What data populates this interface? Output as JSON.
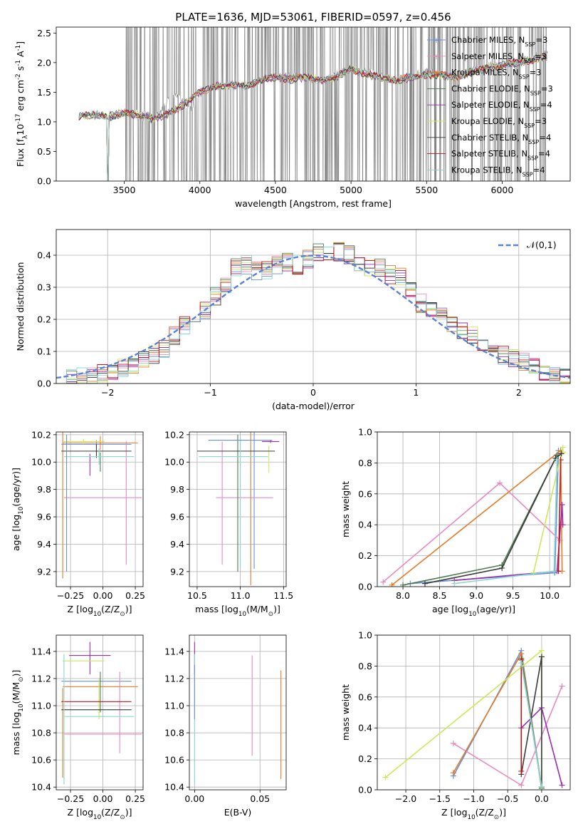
{
  "figure_title": "PLATE=1636, MJD=53061, FIBERID=0597, z=0.456",
  "colors": {
    "Chabrier MILES": "#6b8fd6",
    "Salpeter MILES": "#e88ac0",
    "Kroupa MILES": "#e07b2a",
    "Chabrier ELODIE": "#4c7a50",
    "Salpeter ELODIE": "#9b2db0",
    "Kroupa ELODIE": "#cce85a",
    "Chabrier STELIB": "#3a3a3a",
    "Salpeter STELIB": "#c0141a",
    "Kroupa STELIB": "#8ad8d0",
    "data": "#808080",
    "gauss": "#5a82d4"
  },
  "chart_data": [
    {
      "id": "spectrum",
      "type": "line",
      "xlabel": "wavelength [Angstrom, rest frame]",
      "ylabel": "Flux [f$_\\lambda$10$^{-17}$ erg cm$^{-2}$ s$^{-1}$ A$^{-1}$]",
      "xlim": [
        3050,
        6450
      ],
      "ylim": [
        0,
        2.6
      ],
      "xticks": [
        3500,
        4000,
        4500,
        5000,
        5500,
        6000
      ],
      "yticks": [
        0.0,
        0.5,
        1.0,
        1.5,
        2.0,
        2.5
      ],
      "legend_position": "top-right",
      "legend": [
        "Chabrier MILES, N$_{SSP}$=3",
        "Salpeter MILES, N$_{SSP}$=3",
        "Kroupa MILES, N$_{SSP}$=3",
        "Chabrier ELODIE, N$_{SSP}$=3",
        "Salpeter ELODIE, N$_{SSP}$=4",
        "Kroupa ELODIE, N$_{SSP}$=3",
        "Chabrier STELIB, N$_{SSP}$=4",
        "Salpeter STELIB, N$_{SSP}$=4",
        "Kroupa STELIB, N$_{SSP}$=4"
      ],
      "data_series": {
        "name": "data",
        "x": [
          3200,
          3250,
          3300,
          3350,
          3400,
          3450,
          3500,
          3550,
          3600,
          3650,
          3700,
          3750,
          3800,
          3850,
          3900,
          3950,
          4000,
          4100,
          4200,
          4300,
          4400,
          4500,
          4600,
          4700,
          4800,
          4900,
          5000,
          5100,
          5200,
          5300,
          5400,
          5500,
          5600,
          5700,
          5800,
          5900,
          6000,
          6100,
          6200,
          6300
        ],
        "y": [
          1.1,
          1.12,
          1.08,
          1.13,
          1.05,
          1.1,
          1.15,
          1.1,
          1.2,
          1.12,
          1.1,
          1.2,
          1.4,
          1.45,
          1.3,
          1.2,
          1.5,
          1.6,
          1.65,
          1.6,
          1.7,
          1.75,
          1.8,
          1.75,
          1.7,
          1.8,
          1.9,
          1.85,
          1.8,
          1.7,
          1.8,
          1.85,
          1.8,
          1.75,
          1.9,
          1.95,
          2.0,
          2.0,
          2.1,
          2.2
        ],
        "noise_region": [
          3500,
          6300
        ]
      },
      "model_series": {
        "x": [
          3200,
          3300,
          3400,
          3500,
          3600,
          3700,
          3800,
          3900,
          4000,
          4100,
          4200,
          4300,
          4400,
          4500,
          4600,
          4700,
          4800,
          4900,
          5000,
          5100,
          5200,
          5300,
          5400,
          5500,
          5600,
          5700,
          5800,
          5900,
          6000,
          6100,
          6200,
          6300
        ],
        "y": [
          1.1,
          1.12,
          1.1,
          1.15,
          1.1,
          1.05,
          1.15,
          1.3,
          1.5,
          1.6,
          1.62,
          1.6,
          1.7,
          1.75,
          1.72,
          1.75,
          1.7,
          1.75,
          1.9,
          1.8,
          1.75,
          1.7,
          1.75,
          1.8,
          1.78,
          1.75,
          1.85,
          1.9,
          1.95,
          2.0,
          2.05,
          2.1
        ]
      }
    },
    {
      "id": "residuals",
      "type": "histogram",
      "xlabel": "(data-model)/error",
      "ylabel": "Normed distribution",
      "xlim": [
        -2.5,
        2.5
      ],
      "ylim": [
        0,
        0.48
      ],
      "xticks": [
        -2,
        -1,
        0,
        1,
        2
      ],
      "yticks": [
        0.0,
        0.1,
        0.2,
        0.3,
        0.4
      ],
      "legend": [
        "$\\mathcal{N}(0,1)$"
      ],
      "legend_position": "top-right",
      "bin_edges": [
        -2.5,
        -2.4,
        -2.3,
        -2.2,
        -2.1,
        -2.0,
        -1.9,
        -1.8,
        -1.7,
        -1.6,
        -1.5,
        -1.4,
        -1.3,
        -1.2,
        -1.1,
        -1.0,
        -0.9,
        -0.8,
        -0.7,
        -0.6,
        -0.5,
        -0.4,
        -0.3,
        -0.2,
        -0.1,
        0.0,
        0.1,
        0.2,
        0.3,
        0.4,
        0.5,
        0.6,
        0.7,
        0.8,
        0.9,
        1.0,
        1.1,
        1.2,
        1.3,
        1.4,
        1.5,
        1.6,
        1.7,
        1.8,
        1.9,
        2.0,
        2.1,
        2.2,
        2.3,
        2.4,
        2.5
      ],
      "values": [
        0.01,
        0.015,
        0.02,
        0.025,
        0.03,
        0.04,
        0.05,
        0.06,
        0.07,
        0.09,
        0.11,
        0.15,
        0.18,
        0.2,
        0.23,
        0.27,
        0.31,
        0.36,
        0.37,
        0.35,
        0.35,
        0.37,
        0.38,
        0.37,
        0.39,
        0.41,
        0.4,
        0.41,
        0.4,
        0.38,
        0.36,
        0.36,
        0.34,
        0.33,
        0.29,
        0.25,
        0.23,
        0.21,
        0.19,
        0.16,
        0.15,
        0.12,
        0.1,
        0.09,
        0.08,
        0.07,
        0.06,
        0.04,
        0.03,
        0.02
      ]
    },
    {
      "id": "z_age",
      "type": "errorbar",
      "xlabel": "Z [log$_{10}$(Z/Z$_\\odot$)]",
      "ylabel": "age  [log$_{10}$(age/yr)]",
      "xlim": [
        -0.36,
        0.31
      ],
      "ylim": [
        9.09,
        10.22
      ],
      "xticks": [
        -0.25,
        0.0,
        0.25
      ],
      "xticklabels": [
        "−0.25",
        "0.00",
        "0.25"
      ],
      "yticks": [
        9.2,
        9.4,
        9.6,
        9.8,
        10.0,
        10.2
      ],
      "points": [
        {
          "model": "Chabrier MILES",
          "x": -0.05,
          "xerr": 0.27,
          "y": 10.13,
          "yerr": 0.03
        },
        {
          "model": "Salpeter MILES",
          "x": 0.0,
          "xerr": 0.3,
          "y": 9.74,
          "yerr": 0.0
        },
        {
          "model": "Salpeter MILES",
          "x": 0.18,
          "xerr": 0.0,
          "y": 9.7,
          "yerr": 0.45
        },
        {
          "model": "Kroupa MILES",
          "x": -0.02,
          "xerr": 0.29,
          "y": 10.14,
          "yerr": 0.05
        },
        {
          "model": "Kroupa MILES",
          "x": -0.31,
          "xerr": 0.0,
          "y": 9.7,
          "yerr": 0.55
        },
        {
          "model": "Chabrier ELODIE",
          "x": -0.02,
          "xerr": 0.0,
          "y": 10.0,
          "yerr": 0.07
        },
        {
          "model": "Salpeter ELODIE",
          "x": -0.1,
          "xerr": 0.0,
          "y": 9.98,
          "yerr": 0.08
        },
        {
          "model": "Kroupa ELODIE",
          "x": -0.15,
          "xerr": 0.16,
          "y": 10.15,
          "yerr": 0.02
        },
        {
          "model": "Chabrier STELIB",
          "x": -0.05,
          "xerr": 0.27,
          "y": 10.08,
          "yerr": 0.05
        },
        {
          "model": "Kroupa STELIB",
          "x": -0.03,
          "xerr": 0.27,
          "y": 10.04,
          "yerr": 0.06
        },
        {
          "model": "Chabrier MILES",
          "x": -0.28,
          "xerr": 0.0,
          "y": 9.7,
          "yerr": 0.5
        }
      ]
    },
    {
      "id": "mass_age",
      "type": "errorbar",
      "xlabel": "mass [log$_{10}$(M/M$_\\odot$)]",
      "ylabel": "",
      "xlim": [
        10.41,
        11.53
      ],
      "ylim": [
        9.09,
        10.22
      ],
      "xticks": [
        10.5,
        11.0,
        11.5
      ],
      "yticks": [
        9.2,
        9.4,
        9.6,
        9.8,
        10.0,
        10.2
      ],
      "points": [
        {
          "model": "Chabrier MILES",
          "x": 11.16,
          "xerr": 0.0,
          "y": 9.72,
          "yerr": 0.5
        },
        {
          "model": "Salpeter MILES",
          "x": 10.79,
          "xerr": 0.0,
          "y": 9.7,
          "yerr": 0.45
        },
        {
          "model": "Salpeter MILES",
          "x": 11.05,
          "xerr": 0.33,
          "y": 9.74,
          "yerr": 0.0
        },
        {
          "model": "Kroupa MILES",
          "x": 11.12,
          "xerr": 0.0,
          "y": 9.7,
          "yerr": 0.6
        },
        {
          "model": "Chabrier ELODIE",
          "x": 10.97,
          "xerr": 0.0,
          "y": 9.7,
          "yerr": 0.5
        },
        {
          "model": "Salpeter ELODIE",
          "x": 11.35,
          "xerr": 0.1,
          "y": 10.15,
          "yerr": 0.01
        },
        {
          "model": "Kroupa ELODIE",
          "x": 11.33,
          "xerr": 0.0,
          "y": 10.02,
          "yerr": 0.1
        },
        {
          "model": "Chabrier STELIB",
          "x": 10.95,
          "xerr": 0.45,
          "y": 10.08,
          "yerr": 0.0
        },
        {
          "model": "Kroupa STELIB",
          "x": 10.92,
          "xerr": 0.4,
          "y": 10.04,
          "yerr": 0.0
        },
        {
          "model": "Kroupa STELIB",
          "x": 11.0,
          "xerr": 0.0,
          "y": 9.7,
          "yerr": 0.48
        },
        {
          "model": "Chabrier MILES",
          "x": 11.0,
          "xerr": 0.37,
          "y": 10.16,
          "yerr": 0.0
        }
      ]
    },
    {
      "id": "age_weight",
      "type": "line",
      "xlabel": "age  [log$_{10}$(age/yr)]",
      "ylabel": "mass weight",
      "xlim": [
        7.65,
        10.28
      ],
      "ylim": [
        0,
        1.0
      ],
      "xticks": [
        8.0,
        8.5,
        9.0,
        9.5,
        10.0
      ],
      "yticks": [
        0.0,
        0.2,
        0.4,
        0.6,
        0.8,
        1.0
      ],
      "series": [
        {
          "name": "Chabrier MILES",
          "x": [
            8.1,
            10.07,
            10.12
          ],
          "y": [
            0.02,
            0.09,
            0.88
          ]
        },
        {
          "name": "Salpeter MILES",
          "x": [
            7.73,
            9.32,
            10.14
          ],
          "y": [
            0.03,
            0.67,
            0.3
          ]
        },
        {
          "name": "Kroupa MILES",
          "x": [
            7.85,
            10.15,
            10.17
          ],
          "y": [
            0.01,
            0.88,
            0.1
          ]
        },
        {
          "name": "Chabrier ELODIE",
          "x": [
            8.0,
            9.35,
            10.1
          ],
          "y": [
            0.01,
            0.14,
            0.85
          ]
        },
        {
          "name": "Salpeter ELODIE",
          "x": [
            8.7,
            10.1,
            10.17,
            10.18
          ],
          "y": [
            0.04,
            0.1,
            0.53,
            0.4
          ]
        },
        {
          "name": "Kroupa ELODIE",
          "x": [
            9.78,
            10.18,
            10.18
          ],
          "y": [
            0.09,
            0.9,
            0.87
          ]
        },
        {
          "name": "Chabrier STELIB",
          "x": [
            8.3,
            9.35,
            10.08,
            10.16
          ],
          "y": [
            0.02,
            0.12,
            0.83,
            0.86
          ]
        },
        {
          "name": "Salpeter STELIB",
          "x": [
            10.12,
            10.15
          ],
          "y": [
            0.1,
            0.82
          ]
        },
        {
          "name": "Kroupa STELIB",
          "x": [
            8.7,
            10.06,
            10.1
          ],
          "y": [
            0.02,
            0.1,
            0.82
          ]
        }
      ]
    },
    {
      "id": "z_mass",
      "type": "errorbar",
      "xlabel": "Z [log$_{10}$(Z/Z$_\\odot$)]",
      "ylabel": "mass [log$_{10}$(M/M$_\\odot$)]",
      "xlim": [
        -0.36,
        0.31
      ],
      "ylim": [
        10.38,
        11.52
      ],
      "xticks": [
        -0.25,
        0.0,
        0.25
      ],
      "xticklabels": [
        "−0.25",
        "0.00",
        "0.25"
      ],
      "yticks": [
        10.4,
        10.6,
        10.8,
        11.0,
        11.2,
        11.4
      ],
      "points": [
        {
          "model": "Chabrier MILES",
          "x": -0.05,
          "xerr": 0.27,
          "y": 11.18,
          "yerr": 0.0
        },
        {
          "model": "Salpeter MILES",
          "x": 0.0,
          "xerr": 0.3,
          "y": 10.79,
          "yerr": 0.0
        },
        {
          "model": "Salpeter MILES",
          "x": 0.13,
          "xerr": 0.0,
          "y": 10.95,
          "yerr": 0.3
        },
        {
          "model": "Kroupa MILES",
          "x": -0.02,
          "xerr": 0.29,
          "y": 11.14,
          "yerr": 0.0
        },
        {
          "model": "Kroupa MILES",
          "x": -0.31,
          "xerr": 0.0,
          "y": 10.8,
          "yerr": 0.33
        },
        {
          "model": "Chabrier ELODIE",
          "x": -0.02,
          "xerr": 0.0,
          "y": 11.1,
          "yerr": 0.15
        },
        {
          "model": "Salpeter ELODIE",
          "x": -0.1,
          "xerr": 0.0,
          "y": 11.35,
          "yerr": 0.12
        },
        {
          "model": "Salpeter ELODIE",
          "x": -0.1,
          "xerr": 0.16,
          "y": 11.37,
          "yerr": 0.0
        },
        {
          "model": "Kroupa ELODIE",
          "x": -0.15,
          "xerr": 0.16,
          "y": 11.33,
          "yerr": 0.0
        },
        {
          "model": "Kroupa ELODIE",
          "x": -0.03,
          "xerr": 0.0,
          "y": 11.05,
          "yerr": 0.15
        },
        {
          "model": "Chabrier STELIB",
          "x": -0.05,
          "xerr": 0.27,
          "y": 10.97,
          "yerr": 0.0
        },
        {
          "model": "Salpeter STELIB",
          "x": -0.05,
          "xerr": 0.27,
          "y": 11.03,
          "yerr": 0.0
        },
        {
          "model": "Kroupa STELIB",
          "x": -0.03,
          "xerr": 0.27,
          "y": 10.92,
          "yerr": 0.0
        },
        {
          "model": "Kroupa STELIB",
          "x": -0.3,
          "xerr": 0.0,
          "y": 10.9,
          "yerr": 0.48
        }
      ]
    },
    {
      "id": "ebv_mass",
      "type": "errorbar",
      "xlabel": "E(B-V)",
      "ylabel": "",
      "xlim": [
        -0.004,
        0.07
      ],
      "ylim": [
        10.38,
        11.52
      ],
      "xticks": [
        0.0,
        0.05
      ],
      "xticklabels": [
        "0.00",
        "0.05"
      ],
      "yticks": [
        10.4,
        10.6,
        10.8,
        11.0,
        11.2,
        11.4
      ],
      "points": [
        {
          "model": "Salpeter MILES",
          "x": 0.044,
          "xerr": 0.0,
          "y": 11.0,
          "yerr": 0.37
        },
        {
          "model": "Kroupa MILES",
          "x": 0.066,
          "xerr": 0.0,
          "y": 10.86,
          "yerr": 0.4
        },
        {
          "model": "Salpeter ELODIE",
          "x": 0.0,
          "xerr": 0.0,
          "y": 11.4,
          "yerr": 0.07
        },
        {
          "model": "Salpeter STELIB",
          "x": 0.0,
          "xerr": 0.0,
          "y": 11.28,
          "yerr": 0.05
        },
        {
          "model": "Kroupa STELIB",
          "x": 0.0,
          "xerr": 0.0,
          "y": 10.9,
          "yerr": 0.48
        },
        {
          "model": "Chabrier MILES",
          "x": 0.0,
          "xerr": 0.0,
          "y": 11.1,
          "yerr": 0.2
        }
      ]
    },
    {
      "id": "z_weight",
      "type": "line",
      "xlabel": "Z [log$_{10}$(Z/Z$_\\odot$)]",
      "ylabel": "mass weight",
      "xlim": [
        -2.42,
        0.42
      ],
      "ylim": [
        0,
        1.0
      ],
      "xticks": [
        -2.0,
        -1.5,
        -1.0,
        -0.5,
        0.0
      ],
      "xticklabels": [
        "−2.0",
        "−1.5",
        "−1.0",
        "−0.5",
        "0.0"
      ],
      "yticks": [
        0.0,
        0.2,
        0.4,
        0.6,
        0.8,
        1.0
      ],
      "series": [
        {
          "name": "Chabrier MILES",
          "x": [
            -1.3,
            -0.3,
            0.0
          ],
          "y": [
            0.09,
            0.9,
            0.02
          ]
        },
        {
          "name": "Salpeter MILES",
          "x": [
            -1.3,
            -0.3,
            0.3
          ],
          "y": [
            0.3,
            0.03,
            0.67
          ]
        },
        {
          "name": "Kroupa MILES",
          "x": [
            -1.3,
            -0.3,
            0.0
          ],
          "y": [
            0.11,
            0.88,
            0.01
          ]
        },
        {
          "name": "Chabrier ELODIE",
          "x": [
            -0.3,
            0.0
          ],
          "y": [
            0.85,
            0.01
          ]
        },
        {
          "name": "Salpeter ELODIE",
          "x": [
            -0.3,
            0.0,
            0.3
          ],
          "y": [
            0.4,
            0.53,
            0.03
          ]
        },
        {
          "name": "Kroupa ELODIE",
          "x": [
            -2.3,
            0.0,
            0.0
          ],
          "y": [
            0.08,
            0.9,
            0.0
          ]
        },
        {
          "name": "Chabrier STELIB",
          "x": [
            -0.3,
            0.0,
            0.0
          ],
          "y": [
            0.1,
            0.86,
            0.02
          ]
        },
        {
          "name": "Salpeter STELIB",
          "x": [
            -0.3,
            -0.3
          ],
          "y": [
            0.12,
            0.84
          ]
        },
        {
          "name": "Kroupa STELIB",
          "x": [
            -0.3,
            0.0
          ],
          "y": [
            0.82,
            0.02
          ]
        }
      ]
    }
  ]
}
